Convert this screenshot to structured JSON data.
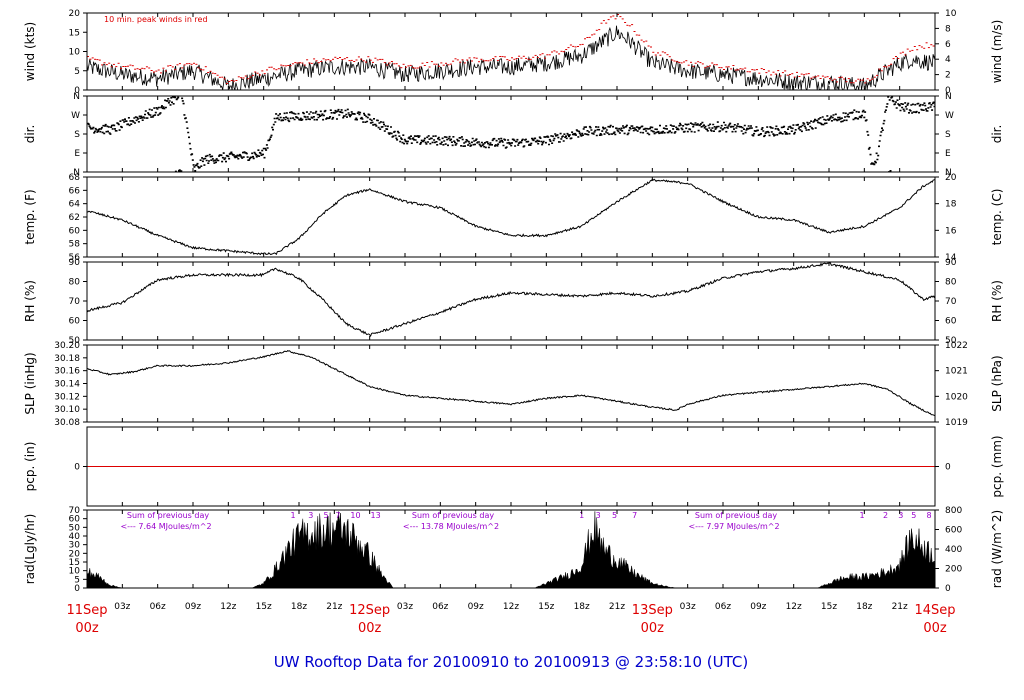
{
  "title": "UW Rooftop Data for 20100910  to  20100913 @ 23:58:10  (UTC)",
  "colors": {
    "peak": "#dd0000",
    "line": "#000000",
    "annotation": "#9900cc",
    "title": "#0000cc",
    "day_label": "#dd0000",
    "zero_line": "#dd0000"
  },
  "x_axis": {
    "hours_total": 72,
    "day_labels": [
      {
        "hour": 0,
        "line1": "11Sep",
        "line2": "00z"
      },
      {
        "hour": 24,
        "line1": "12Sep",
        "line2": "00z"
      },
      {
        "hour": 48,
        "line1": "13Sep",
        "line2": "00z"
      },
      {
        "hour": 72,
        "line1": "14Sep",
        "line2": "00z"
      }
    ],
    "hour_labels": [
      "03z",
      "06z",
      "09z",
      "12z",
      "15z",
      "18z",
      "21z"
    ]
  },
  "panels": [
    {
      "key": "wind",
      "left_label": "wind (kts)",
      "right_label": "wind (m/s)",
      "ylim": [
        0,
        20
      ],
      "left_ticks": [
        "0",
        "5",
        "10",
        "15",
        "20"
      ],
      "right_ticks": [
        "0",
        "2",
        "4",
        "6",
        "8",
        "10"
      ],
      "note": "10 min. peak winds in red"
    },
    {
      "key": "dir",
      "left_label": "dir.",
      "right_label": "dir.",
      "ylim": [
        0,
        360
      ],
      "left_ticks": [
        "N",
        "E",
        "S",
        "W",
        "N"
      ],
      "right_ticks": [
        "N",
        "E",
        "S",
        "W",
        "N"
      ]
    },
    {
      "key": "temp",
      "left_label": "temp. (F)",
      "right_label": "temp. (C)",
      "ylim": [
        55,
        68
      ],
      "left_ticks": [
        "56",
        "58",
        "60",
        "62",
        "64",
        "66",
        "68"
      ],
      "right_ticks": [
        "14",
        "16",
        "18",
        "20"
      ]
    },
    {
      "key": "rh",
      "left_label": "RH (%)",
      "right_label": "RH (%)",
      "ylim": [
        45,
        93
      ],
      "left_ticks": [
        "50",
        "60",
        "70",
        "80",
        "90"
      ],
      "right_ticks": [
        "50",
        "60",
        "70",
        "80",
        "90"
      ]
    },
    {
      "key": "slp",
      "left_label": "SLP (inHg)",
      "right_label": "SLP (hPa)",
      "ylim": [
        30.08,
        30.21
      ],
      "left_ticks": [
        "30.08",
        "30.10",
        "30.12",
        "30.14",
        "30.16",
        "30.18",
        "30.20"
      ],
      "right_ticks": [
        "1019",
        "1020",
        "1021",
        "1022"
      ]
    },
    {
      "key": "pcp",
      "left_label": "pcp. (in)",
      "right_label": "pcp. (mm)",
      "ylim": [
        -1,
        1
      ],
      "left_ticks": [
        "0"
      ],
      "right_ticks": [
        "0"
      ]
    },
    {
      "key": "rad",
      "left_label": "rad(Lgly/hr)",
      "right_label": "rad (W/m^2)",
      "ylim": [
        0,
        72
      ],
      "left_ticks": [
        "0",
        "5",
        "10",
        "15",
        "20",
        "30",
        "40",
        "50",
        "60",
        "70"
      ],
      "right_ticks": [
        "0",
        "200",
        "400",
        "600",
        "800"
      ]
    }
  ],
  "rad_annotations": [
    {
      "line1": "Sum of previous day",
      "line2": "<--- 7.64 MJoules/m^2"
    },
    {
      "line1": "Sum of previous day",
      "line2": "<--- 13.78 MJoules/m^2"
    },
    {
      "line1": "Sum of previous day",
      "line2": "<--- 7.97 MJoules/m^2"
    }
  ],
  "rad_hour_marks": [
    {
      "hour": 17.5,
      "text": "1"
    },
    {
      "hour": 19.0,
      "text": "3"
    },
    {
      "hour": 20.3,
      "text": "5"
    },
    {
      "hour": 21.3,
      "text": "7"
    },
    {
      "hour": 22.8,
      "text": "10"
    },
    {
      "hour": 24.5,
      "text": "13"
    },
    {
      "hour": 42.0,
      "text": "1"
    },
    {
      "hour": 43.4,
      "text": "3"
    },
    {
      "hour": 44.8,
      "text": "5"
    },
    {
      "hour": 46.5,
      "text": "7"
    },
    {
      "hour": 65.8,
      "text": "1"
    },
    {
      "hour": 67.8,
      "text": "2"
    },
    {
      "hour": 69.1,
      "text": "3"
    },
    {
      "hour": 70.2,
      "text": "5"
    },
    {
      "hour": 71.5,
      "text": "8"
    }
  ],
  "chart_data": [
    {
      "type": "line",
      "title": "",
      "ylabel": "wind (kts)",
      "ylim": [
        0,
        20
      ],
      "series": [
        {
          "name": "",
          "x_hours": [
            0,
            3,
            6,
            9,
            12,
            15,
            18,
            21,
            24,
            27,
            30,
            33,
            36,
            39,
            42,
            44,
            45,
            46,
            48,
            51,
            54,
            57,
            60,
            63,
            66,
            68,
            69,
            70,
            72
          ],
          "values": [
            6,
            4,
            3,
            5,
            1,
            3,
            5,
            6,
            6,
            4,
            5,
            6,
            6,
            7,
            9,
            13,
            15,
            13,
            7,
            5,
            4,
            3,
            2,
            2,
            1,
            5,
            7,
            8,
            7
          ]
        },
        {
          "name": "10 min. peak winds in red",
          "x_hours": [
            0,
            3,
            6,
            9,
            12,
            15,
            18,
            21,
            24,
            27,
            30,
            33,
            36,
            39,
            42,
            44,
            45,
            46,
            48,
            51,
            54,
            57,
            60,
            63,
            66,
            68,
            69,
            70,
            72
          ],
          "values": [
            8,
            6,
            5,
            7,
            2,
            5,
            7,
            8,
            8,
            6,
            7,
            8,
            8,
            9,
            12,
            18,
            19,
            17,
            10,
            7,
            6,
            5,
            4,
            3,
            2,
            7,
            9,
            11,
            12
          ]
        }
      ]
    },
    {
      "type": "scatter",
      "title": "",
      "ylabel": "dir.",
      "ylim": [
        0,
        360
      ],
      "series": [
        {
          "name": "",
          "x_hours": [
            0,
            2,
            4,
            6,
            7,
            8,
            9,
            10,
            12,
            13,
            14,
            15,
            16,
            18,
            20,
            22,
            24,
            27,
            30,
            33,
            36,
            39,
            42,
            45,
            48,
            51,
            54,
            57,
            60,
            63,
            66,
            66.5,
            67,
            67.5,
            68,
            69,
            70,
            72
          ],
          "values": [
            210,
            200,
            250,
            290,
            340,
            355,
            10,
            60,
            70,
            75,
            80,
            90,
            260,
            265,
            270,
            275,
            250,
            150,
            150,
            140,
            135,
            150,
            190,
            200,
            200,
            210,
            215,
            190,
            200,
            250,
            280,
            30,
            70,
            220,
            350,
            310,
            300,
            310
          ]
        }
      ]
    },
    {
      "type": "line",
      "title": "",
      "ylabel": "temp. (F)",
      "ylim": [
        55,
        68
      ],
      "series": [
        {
          "name": "",
          "x_hours": [
            0,
            3,
            6,
            9,
            12,
            15,
            16,
            18,
            20,
            22,
            24,
            27,
            30,
            33,
            36,
            39,
            42,
            45,
            48,
            51,
            54,
            57,
            60,
            63,
            66,
            69,
            71,
            72
          ],
          "values": [
            62.5,
            61,
            58.5,
            56.5,
            56,
            55.5,
            55.5,
            58,
            62,
            65,
            66,
            64,
            63,
            60,
            58.5,
            58.5,
            60,
            64,
            67.5,
            67,
            64,
            61.5,
            61,
            59,
            60,
            63,
            66.5,
            67.5
          ]
        }
      ]
    },
    {
      "type": "line",
      "title": "",
      "ylabel": "RH (%)",
      "ylim": [
        45,
        93
      ],
      "series": [
        {
          "name": "",
          "x_hours": [
            0,
            3,
            6,
            9,
            12,
            15,
            16,
            18,
            20,
            22,
            24,
            27,
            30,
            33,
            36,
            39,
            42,
            45,
            48,
            51,
            54,
            57,
            60,
            63,
            66,
            69,
            71,
            72
          ],
          "values": [
            63,
            68,
            82,
            85,
            85,
            85,
            89,
            83,
            70,
            55,
            48,
            55,
            62,
            70,
            74,
            73,
            72,
            74,
            72,
            75,
            83,
            87,
            89,
            92,
            87,
            82,
            70,
            72
          ]
        }
      ]
    },
    {
      "type": "line",
      "title": "",
      "ylabel": "SLP (inHg)",
      "ylim": [
        30.08,
        30.21
      ],
      "series": [
        {
          "name": "",
          "x_hours": [
            0,
            2,
            4,
            6,
            9,
            12,
            15,
            17,
            19,
            21,
            24,
            27,
            30,
            33,
            36,
            39,
            42,
            45,
            48,
            50,
            51,
            54,
            57,
            60,
            63,
            66,
            68,
            70,
            72
          ],
          "values": [
            30.17,
            30.16,
            30.165,
            30.175,
            30.175,
            30.18,
            30.19,
            30.2,
            30.19,
            30.17,
            30.14,
            30.125,
            30.12,
            30.115,
            30.11,
            30.12,
            30.125,
            30.115,
            30.105,
            30.1,
            30.11,
            30.125,
            30.13,
            30.135,
            30.14,
            30.145,
            30.135,
            30.11,
            30.09
          ]
        }
      ]
    },
    {
      "type": "line",
      "title": "",
      "ylabel": "pcp. (in)",
      "ylim": [
        -1,
        1
      ],
      "series": [
        {
          "name": "",
          "x_hours": [
            0,
            72
          ],
          "values": [
            0,
            0
          ]
        }
      ]
    },
    {
      "type": "area",
      "title": "",
      "ylabel": "rad(Lgly/hr)",
      "ylim": [
        0,
        72
      ],
      "series": [
        {
          "name": "",
          "x_hours": [
            0,
            1,
            2,
            3,
            14,
            15,
            16,
            17,
            18,
            19,
            20,
            21,
            22,
            23,
            24,
            25,
            26,
            38,
            39,
            40,
            41,
            42,
            43,
            44,
            45,
            46,
            47,
            48,
            49,
            50,
            62,
            63,
            64,
            65,
            66,
            67,
            68,
            69,
            70,
            71,
            72
          ],
          "values": [
            18,
            12,
            3,
            0,
            0,
            5,
            20,
            40,
            55,
            60,
            62,
            65,
            62,
            50,
            35,
            15,
            0,
            0,
            5,
            10,
            15,
            25,
            65,
            40,
            30,
            20,
            12,
            5,
            2,
            0,
            0,
            5,
            10,
            12,
            12,
            15,
            18,
            25,
            55,
            45,
            35
          ]
        }
      ]
    }
  ]
}
